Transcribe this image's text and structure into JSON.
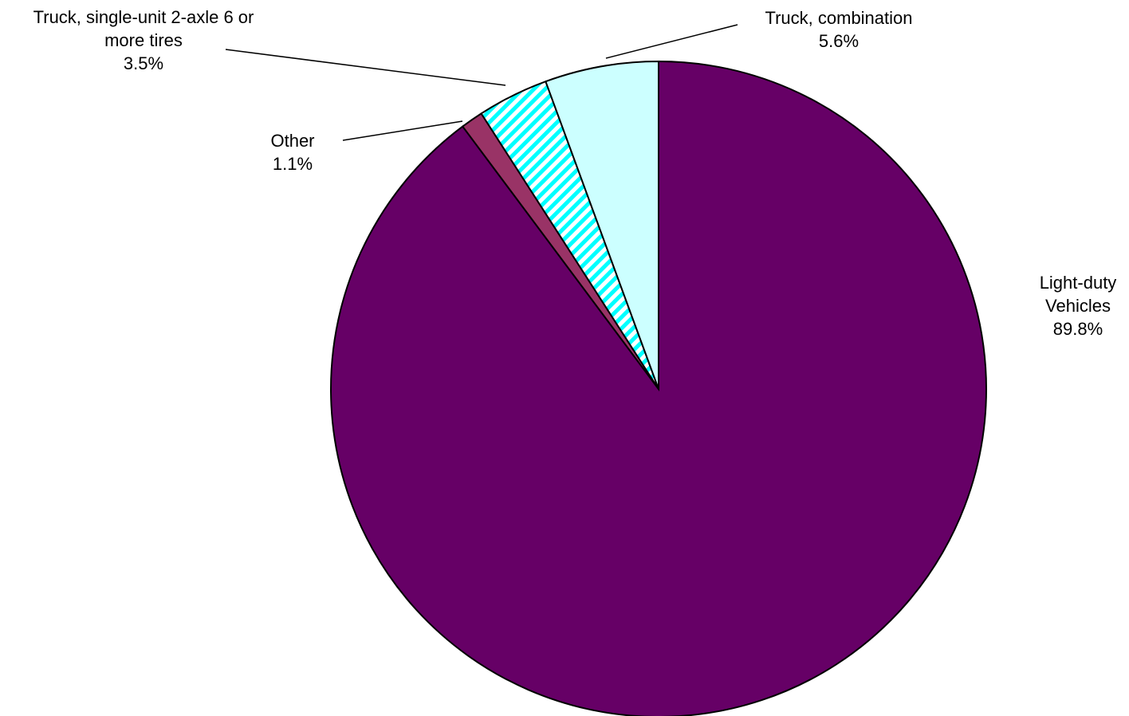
{
  "chart_data": {
    "type": "pie",
    "title": "",
    "start_angle_deg": 0,
    "direction": "clockwise",
    "slices": [
      {
        "label_lines": [
          "Light-duty",
          "Vehicles"
        ],
        "value": 89.8,
        "value_label": "89.8%",
        "color": "#660066",
        "pattern": "solid"
      },
      {
        "label_lines": [
          "Other"
        ],
        "value": 1.1,
        "value_label": "1.1%",
        "color": "#993366",
        "pattern": "solid"
      },
      {
        "label_lines": [
          "Truck, single-unit 2-axle 6 or",
          "more tires"
        ],
        "value": 3.5,
        "value_label": "3.5%",
        "color": "#00ffff",
        "pattern": "diagonal-stripes"
      },
      {
        "label_lines": [
          "Truck, combination"
        ],
        "value": 5.6,
        "value_label": "5.6%",
        "color": "#ccffff",
        "pattern": "solid"
      }
    ]
  }
}
